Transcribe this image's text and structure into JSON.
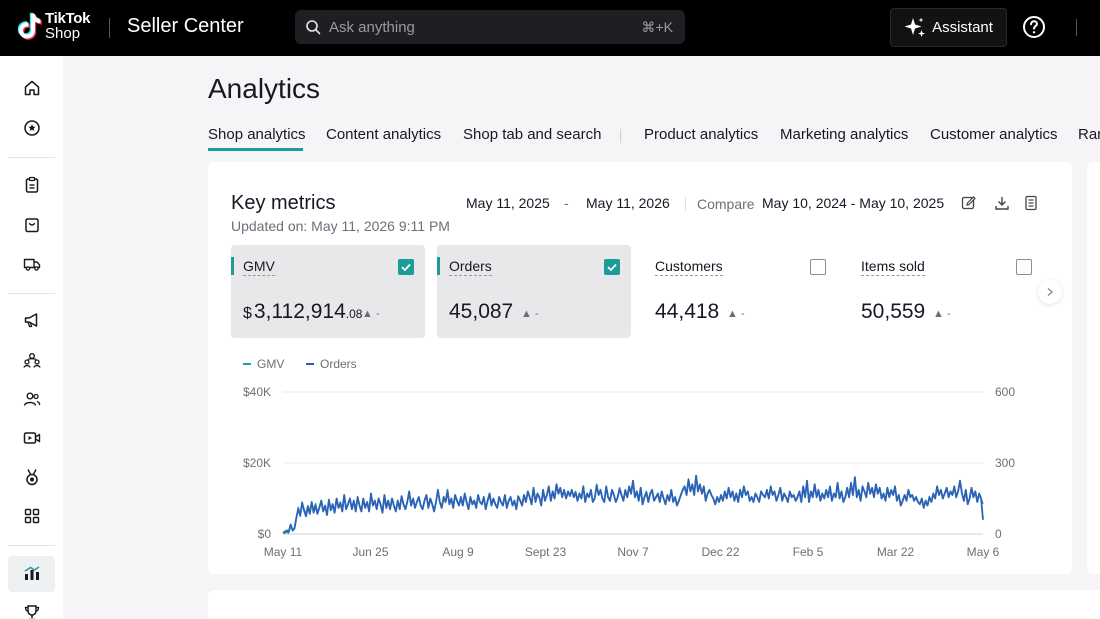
{
  "header": {
    "brand_line1": "TikTok",
    "brand_line2": "Shop",
    "product_name": "Seller Center",
    "search_placeholder": "Ask anything",
    "search_shortcut": "⌘+K",
    "assistant_label": "Assistant",
    "icons": [
      "tiktok-logo-icon",
      "search-icon",
      "sparkle-icon",
      "help-icon"
    ]
  },
  "sidebar": {
    "items": [
      {
        "name": "home",
        "icon": "home-icon"
      },
      {
        "name": "favorites",
        "icon": "star-circle-icon"
      },
      {
        "name": "orders",
        "icon": "clipboard-icon"
      },
      {
        "name": "products",
        "icon": "shopping-bag-icon"
      },
      {
        "name": "shipping",
        "icon": "truck-icon"
      },
      {
        "name": "marketing",
        "icon": "megaphone-icon"
      },
      {
        "name": "affiliate",
        "icon": "people-network-icon"
      },
      {
        "name": "customers",
        "icon": "users-icon"
      },
      {
        "name": "live-video",
        "icon": "video-icon"
      },
      {
        "name": "rewards",
        "icon": "medal-icon"
      },
      {
        "name": "apps",
        "icon": "grid-icon"
      },
      {
        "name": "analytics",
        "icon": "bar-chart-icon",
        "active": true
      },
      {
        "name": "achievements",
        "icon": "trophy-icon"
      }
    ]
  },
  "page": {
    "title": "Analytics",
    "tabs": [
      {
        "label": "Shop analytics",
        "active": true
      },
      {
        "label": "Content analytics"
      },
      {
        "label": "Shop tab and search"
      },
      {
        "label": "Product analytics"
      },
      {
        "label": "Marketing analytics"
      },
      {
        "label": "Customer analytics"
      },
      {
        "label": "Ran"
      }
    ]
  },
  "key_metrics": {
    "title": "Key metrics",
    "updated": "Updated on: May 11, 2026 9:11 PM",
    "date_start": "May 11, 2025",
    "date_separator": "-",
    "date_end": "May 11, 2026",
    "compare_label": "Compare",
    "compare_range": "May 10, 2024 - May 10, 2025",
    "tool_icons": [
      "edit-icon",
      "download-icon",
      "notes-icon"
    ],
    "metrics": [
      {
        "label": "GMV",
        "currency": "$",
        "value": "3,112,914",
        "decimals": ".08",
        "trend": "▲ -",
        "selected": true
      },
      {
        "label": "Orders",
        "value": "45,087",
        "trend": "▲ -",
        "selected": true
      },
      {
        "label": "Customers",
        "value": "44,418",
        "trend": "▲ -",
        "selected": false
      },
      {
        "label": "Items sold",
        "value": "50,559",
        "trend": "▲ -",
        "selected": false
      }
    ]
  },
  "colors": {
    "accent": "#1a9c98",
    "gmv_line": "#1aa39e",
    "orders_line": "#2e62b8"
  },
  "chart_data": {
    "type": "line",
    "legend": [
      {
        "name": "GMV",
        "color": "#1aa39e"
      },
      {
        "name": "Orders",
        "color": "#2e62b8"
      }
    ],
    "x_tick_labels": [
      "May 11",
      "Jun 25",
      "Aug 9",
      "Sept 23",
      "Nov 7",
      "Dec 22",
      "Feb 5",
      "Mar 22",
      "May 6"
    ],
    "left_axis": {
      "ticks": [
        "$0",
        "$20K",
        "$40K"
      ],
      "range": [
        0,
        40000
      ]
    },
    "right_axis": {
      "ticks": [
        "0",
        "300",
        "600"
      ],
      "range": [
        0,
        600
      ]
    },
    "grid": true,
    "series": [
      {
        "name": "GMV",
        "axis": "left",
        "values": [
          200,
          300,
          500,
          300,
          2500,
          900,
          1500,
          4500,
          7500,
          5000,
          9000,
          7000,
          5500,
          8000,
          6000,
          9000,
          6500,
          8500,
          6000,
          7500,
          9500,
          6500,
          8000,
          5500,
          9500,
          7000,
          8500,
          6000,
          10000,
          7500,
          9000,
          6500,
          11000,
          7000,
          8500,
          10000,
          7000,
          9500,
          6500,
          10500,
          8000,
          6500,
          10000,
          7500,
          9000,
          6500,
          11500,
          8000,
          9500,
          7000,
          10000,
          8500,
          6000,
          11000,
          7500,
          9500,
          7000,
          10000,
          8000,
          6500,
          9500,
          7000,
          10500,
          8500,
          7000,
          9000,
          12000,
          8000,
          10000,
          7500,
          9000,
          10500,
          8000,
          7000,
          9500,
          11000,
          7500,
          10000,
          8500,
          6500,
          9000,
          12500,
          9000,
          7500,
          10500,
          9000,
          12500,
          8500,
          10000,
          7500,
          11000,
          9500,
          8000,
          10500,
          8000,
          11500,
          9000,
          7000,
          10500,
          8500,
          9500,
          7500,
          11000,
          9000,
          8500,
          10500,
          7000,
          9500,
          11500,
          8000,
          10000,
          8500,
          7500,
          10500,
          9000,
          8000,
          11000,
          7500,
          9500,
          10500,
          8000,
          9500,
          7000,
          10500,
          9500,
          8000,
          11000,
          9000,
          12000,
          10500,
          8500,
          13000,
          9000,
          11500,
          10500,
          8000,
          12500,
          9500,
          11000,
          13500,
          9500,
          12000,
          10000,
          14000,
          11500,
          13000,
          10500,
          12500,
          10000,
          12000,
          11000,
          12500,
          10500,
          12000,
          9500,
          11500,
          10000,
          13500,
          9000,
          11500,
          10500,
          12500,
          9000,
          10000,
          14000,
          11000,
          12500,
          10000,
          9000,
          13500,
          10500,
          9500,
          12500,
          11000,
          9000,
          10500,
          13000,
          11000,
          9500,
          12500,
          10500,
          13500,
          11500,
          15000,
          10500,
          12000,
          9500,
          13000,
          8500,
          10500,
          12000,
          9000,
          11500,
          12500,
          9500,
          10500,
          11500,
          9000,
          12000,
          10000,
          8500,
          11000,
          9500,
          12500,
          9000,
          10500,
          8000,
          9500,
          11000,
          12500,
          13500,
          11000,
          15500,
          12000,
          14000,
          11000,
          16500,
          12000,
          14000,
          11500,
          13500,
          9500,
          11500,
          12500,
          11000,
          10000,
          8500,
          10500,
          9000,
          11000,
          9500,
          12000,
          10000,
          13000,
          10500,
          12000,
          9500,
          11500,
          9000,
          12500,
          10500,
          13500,
          11000,
          12000,
          9500,
          10500,
          9000,
          11500,
          10500,
          9000,
          12000,
          11000,
          10500,
          12500,
          10000,
          13500,
          11000,
          12000,
          9500,
          11000,
          13000,
          9500,
          11500,
          10500,
          9000,
          12000,
          10500,
          11000,
          9500,
          10500,
          12000,
          9000,
          13500,
          10500,
          15000,
          9000,
          12000,
          10500,
          14000,
          10500,
          12500,
          9500,
          11500,
          10000,
          12500,
          10500,
          13500,
          9500,
          11500,
          10500,
          14500,
          10000,
          12000,
          9000,
          10500,
          13000,
          10500,
          14500,
          11000,
          16000,
          10500,
          12500,
          9500,
          13500,
          12000,
          10500,
          14500,
          11500,
          13000,
          10500,
          14000,
          11500,
          13000,
          10000,
          11500,
          9500,
          13000,
          10500,
          12500,
          11000,
          13500,
          9500,
          11000,
          8000,
          9500,
          11000,
          9500,
          12500,
          10500,
          11000,
          9500,
          10500,
          9000,
          8500,
          10000,
          7500,
          9500,
          8000,
          10500,
          9000,
          11500,
          10000,
          13500,
          11000,
          12500,
          10000,
          11500,
          13000,
          10500,
          12000,
          11000,
          13500,
          10500,
          12000,
          15000,
          11500,
          9500,
          12500,
          8500,
          10000,
          13000,
          10500,
          12000,
          9000,
          11500,
          10000,
          8500
        ]
      },
      {
        "name": "Orders",
        "axis": "right",
        "values": [
          5,
          10,
          15,
          10,
          40,
          15,
          25,
          70,
          105,
          80,
          130,
          100,
          75,
          115,
          85,
          135,
          90,
          120,
          85,
          110,
          140,
          95,
          120,
          80,
          145,
          100,
          125,
          90,
          150,
          110,
          130,
          95,
          165,
          105,
          125,
          150,
          105,
          140,
          95,
          155,
          120,
          95,
          150,
          110,
          135,
          95,
          170,
          120,
          140,
          105,
          150,
          125,
          90,
          165,
          110,
          140,
          105,
          150,
          120,
          95,
          140,
          105,
          160,
          125,
          105,
          135,
          180,
          120,
          150,
          110,
          135,
          155,
          120,
          105,
          140,
          165,
          110,
          150,
          125,
          95,
          135,
          185,
          135,
          110,
          155,
          135,
          180,
          125,
          150,
          110,
          165,
          140,
          120,
          155,
          120,
          170,
          135,
          105,
          155,
          125,
          140,
          110,
          165,
          135,
          125,
          155,
          105,
          140,
          170,
          120,
          150,
          125,
          110,
          155,
          135,
          120,
          165,
          110,
          140,
          155,
          120,
          140,
          105,
          160,
          140,
          120,
          165,
          135,
          180,
          155,
          125,
          195,
          135,
          170,
          155,
          120,
          185,
          140,
          165,
          200,
          140,
          180,
          150,
          210,
          170,
          195,
          155,
          185,
          150,
          180,
          160,
          185,
          155,
          175,
          140,
          170,
          150,
          200,
          135,
          170,
          155,
          185,
          135,
          150,
          205,
          165,
          185,
          150,
          135,
          200,
          155,
          140,
          185,
          165,
          135,
          155,
          190,
          165,
          140,
          185,
          155,
          200,
          170,
          225,
          155,
          180,
          140,
          195,
          125,
          155,
          175,
          135,
          170,
          185,
          140,
          155,
          170,
          135,
          180,
          150,
          125,
          165,
          140,
          185,
          135,
          155,
          120,
          140,
          165,
          185,
          200,
          165,
          230,
          180,
          210,
          165,
          245,
          180,
          210,
          170,
          200,
          140,
          170,
          185,
          165,
          150,
          125,
          155,
          135,
          165,
          140,
          180,
          150,
          195,
          155,
          180,
          140,
          170,
          135,
          185,
          155,
          200,
          165,
          180,
          140,
          155,
          135,
          170,
          155,
          135,
          180,
          165,
          155,
          185,
          150,
          200,
          165,
          180,
          140,
          165,
          195,
          140,
          170,
          155,
          135,
          180,
          155,
          165,
          140,
          155,
          180,
          135,
          200,
          155,
          225,
          135,
          180,
          155,
          210,
          155,
          185,
          140,
          170,
          150,
          185,
          155,
          200,
          140,
          170,
          155,
          215,
          150,
          180,
          135,
          155,
          195,
          155,
          215,
          165,
          240,
          155,
          185,
          140,
          200,
          180,
          155,
          215,
          170,
          195,
          155,
          210,
          170,
          195,
          150,
          170,
          140,
          195,
          155,
          185,
          165,
          200,
          140,
          165,
          120,
          140,
          165,
          140,
          185,
          155,
          165,
          140,
          155,
          135,
          125,
          150,
          110,
          140,
          120,
          155,
          135,
          170,
          150,
          200,
          165,
          185,
          150,
          170,
          195,
          155,
          180,
          165,
          200,
          155,
          180,
          225,
          170,
          140,
          185,
          125,
          150,
          195,
          155,
          180,
          135,
          170,
          150,
          60
        ]
      }
    ]
  }
}
